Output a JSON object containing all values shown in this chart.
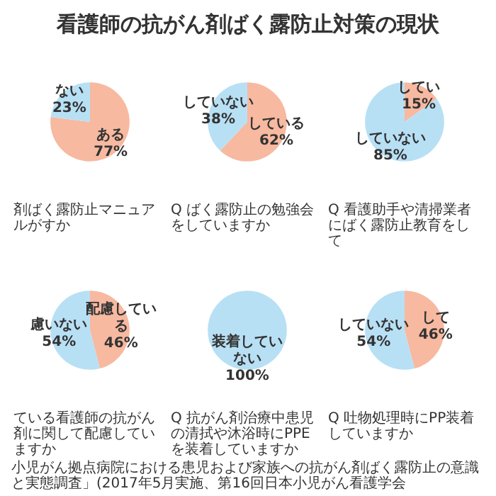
{
  "chart_data": [
    {
      "type": "pie",
      "title": "看護師の抗がん剤ばく露防止対策の現状",
      "categories": [
        "ある",
        "ない"
      ],
      "values": [
        77,
        23
      ],
      "colors": [
        "#f7b9a0",
        "#b8e0f5"
      ],
      "value_labels": [
        "77%",
        "23%"
      ],
      "annotations": [
        "剤ばく露防止マニュアルがすか"
      ]
    },
    {
      "type": "pie",
      "categories": [
        "している",
        "していない"
      ],
      "values": [
        62,
        38
      ],
      "colors": [
        "#f7b9a0",
        "#b8e0f5"
      ],
      "value_labels": [
        "62%",
        "38%"
      ],
      "annotations": [
        "Q ばく露防止の勉強会をしていますか"
      ]
    },
    {
      "type": "pie",
      "categories": [
        "してい",
        "していない"
      ],
      "values": [
        15,
        85
      ],
      "colors": [
        "#f7b9a0",
        "#b8e0f5"
      ],
      "value_labels": [
        "15%",
        "85%"
      ],
      "annotations": [
        "Q 看護助手や清掃業者にばく露防止教育をして"
      ]
    },
    {
      "type": "pie",
      "categories": [
        "配慮している",
        "慮いない"
      ],
      "values": [
        46,
        54
      ],
      "colors": [
        "#f7b9a0",
        "#b8e0f5"
      ],
      "value_labels": [
        "46%",
        "54%"
      ],
      "annotations": [
        "ている看護師の抗がん剤に関して配慮していますか"
      ]
    },
    {
      "type": "pie",
      "categories": [
        "装着していない"
      ],
      "values": [
        100
      ],
      "colors": [
        "#b8e0f5"
      ],
      "value_labels": [
        "100%"
      ],
      "annotations": [
        "Q 抗がん剤治療中患児の清拭や沐浴時にPPEを装着していますか"
      ]
    },
    {
      "type": "pie",
      "categories": [
        "して",
        "していない"
      ],
      "values": [
        46,
        54
      ],
      "colors": [
        "#f7b9a0",
        "#b8e0f5"
      ],
      "value_labels": [
        "46%",
        "54%"
      ],
      "annotations": [
        "Q 吐物処理時にPP装着していますか",
        "小児がん拠点病院における患児および家族への抗がん剤ばく露防止の意識と実態調査」(2017年5月実施、第16回日本小児がん看護学会"
      ]
    }
  ]
}
